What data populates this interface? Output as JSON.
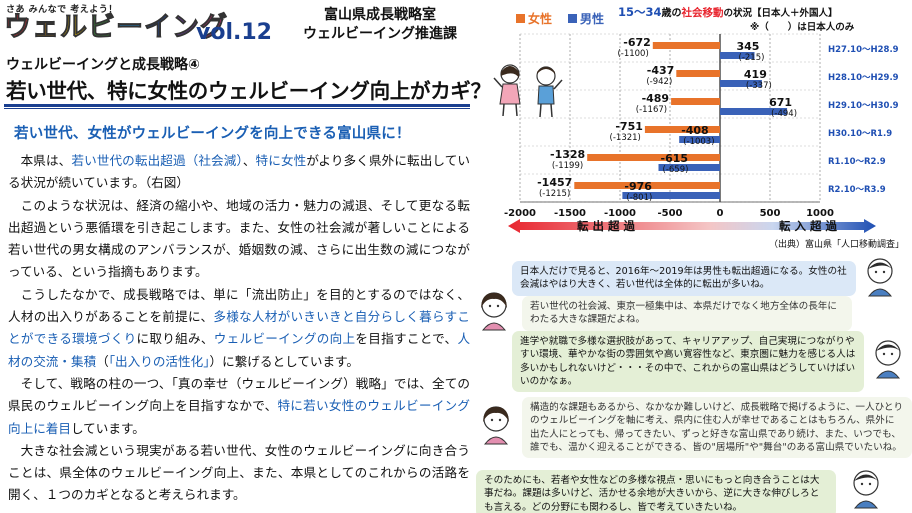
{
  "header": {
    "tagline": "さあ みんなで 考えよう！",
    "brand_chars": [
      {
        "ch": "ウ",
        "color": "#e8262f"
      },
      {
        "ch": "ェ",
        "color": "#f39800"
      },
      {
        "ch": "ル",
        "color": "#f6c700"
      },
      {
        "ch": "ビ",
        "color": "#3aa53a"
      },
      {
        "ch": "ー",
        "color": "#1b8fd6"
      },
      {
        "ch": "イ",
        "color": "#1f4fb3"
      },
      {
        "ch": "ン",
        "color": "#7a3fb3"
      },
      {
        "ch": "グ",
        "color": "#d6287a"
      }
    ],
    "volume": "vol.12",
    "org_line1": "富山県成長戦略室",
    "org_line2": "ウェルビーイング推進課"
  },
  "article": {
    "series_title": "ウェルビーイングと成長戦略④",
    "main_title": "若い世代、特に女性のウェルビーイング向上がカギ？",
    "subhead": "若い世代、女性がウェルビーイングを向上できる富山県に！",
    "p1_a": "本県は、",
    "p1_hl1": "若い世代の転出超過（社会減）",
    "p1_b": "、",
    "p1_hl2": "特に女性",
    "p1_c": "がより多く県外に転出している状況が続いています。（右図）",
    "p2": "このような状況は、経済の縮小や、地域の活力・魅力の減退、そして更なる転出超過という悪循環を引き起こします。また、女性の社会減が著しいことによる若い世代の男女構成のアンバランスが、婚姻数の減、さらに出生数の減につながっている、という指摘もあります。",
    "p3_a": "こうしたなかで、成長戦略では、単に「流出防止」を目的とするのではなく、人材の出入りがあることを前提に、",
    "p3_hl1": "多様な人材がいきいきと自分らしく暮らすことができる環境づくり",
    "p3_b": "に取り組み、",
    "p3_hl2": "ウェルビーイングの向上",
    "p3_c": "を目指すことで、",
    "p3_hl3": "人材の交流・集積",
    "p3_d": "（",
    "p3_hl4": "「出入りの活性化」",
    "p3_e": "）に繋げるとしています。",
    "p4_a": "そして、戦略の柱の一つ、「真の幸せ（ウェルビーイング）戦略」では、全ての県民のウェルビーイング向上を目指すなかで、",
    "p4_hl": "特に若い女性のウェルビーイング向上に着目",
    "p4_b": "しています。",
    "p5": "大きな社会減という現実がある若い世代、女性のウェルビーイングに向き合うことは、県全体のウェルビーイング向上、また、本県としてのこれからの活路を開く、１つのカギとなると考えられます。"
  },
  "chart_data": {
    "type": "bar",
    "orientation": "horizontal",
    "title_prefix": "15～34",
    "title_mid": "歳の",
    "title_em": "社会移動",
    "title_suffix": "の状況【日本人＋外国人】",
    "note": "※（　　）は日本人のみ",
    "categories": [
      "H27.10～H28.9",
      "H28.10～H29.9",
      "H29.10～H30.9",
      "H30.10～R1.9",
      "R1.10～R2.9",
      "R2.10～R3.9"
    ],
    "series": [
      {
        "name": "女性",
        "color": "#e8732a",
        "values": [
          -672,
          -437,
          -489,
          -751,
          -1328,
          -1457
        ],
        "japanese_only": [
          -1100,
          -942,
          -1167,
          -1321,
          -1199,
          -1215
        ]
      },
      {
        "name": "男性",
        "color": "#3a62b8",
        "values": [
          345,
          419,
          671,
          -408,
          -615,
          -976
        ],
        "japanese_only": [
          -215,
          -337,
          -494,
          -1003,
          -659,
          -801
        ]
      }
    ],
    "value_labels": {
      "female": [
        "-672",
        "-437",
        "-489",
        "-751",
        "-1328",
        "-1457"
      ],
      "female_jp": [
        "(-1100)",
        "(-942)",
        "(-1167)",
        "(-1321)",
        "(-1199)",
        "(-1215)"
      ],
      "male": [
        "345",
        "419",
        "671",
        "-408",
        "-615",
        "-976"
      ],
      "male_jp": [
        "(-215)",
        "(-337)",
        "(-494)",
        "(-1003)",
        "(-659)",
        "(-801)"
      ]
    },
    "xlim": [
      -2000,
      1000
    ],
    "xticks": [
      -2000,
      -1500,
      -1000,
      -500,
      0,
      500,
      1000
    ],
    "xtick_labels": [
      "-2000",
      "-1500",
      "-1000",
      "-500",
      "0",
      "500",
      "1000"
    ],
    "out_label": "転 出 超 過",
    "in_label": "転 入 超 過",
    "out_color": "#e8262f",
    "in_color": "#1f4fb3",
    "source": "（出典）富山県「人口移動調査」",
    "grid": true,
    "legend": "top-left"
  },
  "dialogue": [
    {
      "text": "日本人だけで見ると、2016年～2019年は男性も転出超過になる。女性の社会減はやはり大きく、若い世代は全体的に転出が多いね。"
    },
    {
      "text": "若い世代の社会減、東京一極集中は、本県だけでなく地方全体の長年にわたる大きな課題だよね。"
    },
    {
      "text": "進学や就職で多様な選択肢があって、キャリアアップ、自己実現につながりやすい環境、華やかな街の雰囲気や高い寛容性など、東京圏に魅力を感じる人は多いかもしれないけど・・・その中で、これからの富山県はどうしていけばいいのかなぁ。"
    },
    {
      "text": "構造的な課題もあるから、なかなか難しいけど、成長戦略で掲げるように、一人ひとりのウェルビーイングを軸に考え、県内に住む人が幸せであることはもちろん、県外に出た人にとっても、帰ってきたい、ずっと好きな富山県であり続け、また、いつでも、誰でも、温かく迎えることができる、皆の\"居場所\"や\"舞台\"のある富山県でいたいね。"
    },
    {
      "text": "そのためにも、若者や女性などの多様な視点・思いにもっと向き合うことは大事だね。課題は多いけど、活かせる余地が大きいから、逆に大きな伸びしろとも言える。どの分野にも関わるし、皆で考えていきたいね。"
    }
  ]
}
